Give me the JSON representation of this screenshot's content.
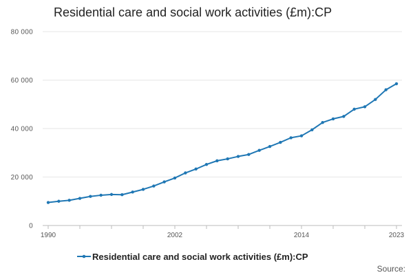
{
  "chart_data": {
    "type": "line",
    "title": "Residential care and social work activities (£m):CP",
    "xlabel": "",
    "ylabel": "",
    "x": [
      1990,
      1991,
      1992,
      1993,
      1994,
      1995,
      1996,
      1997,
      1998,
      1999,
      2000,
      2001,
      2002,
      2003,
      2004,
      2005,
      2006,
      2007,
      2008,
      2009,
      2010,
      2011,
      2012,
      2013,
      2014,
      2015,
      2016,
      2017,
      2018,
      2019,
      2020,
      2021,
      2022,
      2023
    ],
    "series": [
      {
        "name": "Residential care and social work activities (£m):CP",
        "color": "#1f77b4",
        "values": [
          9500,
          10000,
          10400,
          11200,
          12000,
          12500,
          12800,
          12700,
          13800,
          14900,
          16300,
          18000,
          19600,
          21700,
          23300,
          25200,
          26700,
          27500,
          28500,
          29300,
          31000,
          32600,
          34300,
          36200,
          37000,
          39500,
          42500,
          44000,
          45000,
          48000,
          49000,
          52000,
          56000,
          58500
        ]
      }
    ],
    "ylim": [
      0,
      80000
    ],
    "yticks": [
      0,
      20000,
      40000,
      60000,
      80000
    ],
    "ytick_labels": [
      "0",
      "20 000",
      "40 000",
      "60 000",
      "80 000"
    ],
    "xlim": [
      1990,
      2023
    ],
    "xtick_labels_shown": [
      1990,
      2002,
      2014,
      2023
    ],
    "grid": "horizontal",
    "legend": "bottom",
    "source_label": "Source:"
  }
}
